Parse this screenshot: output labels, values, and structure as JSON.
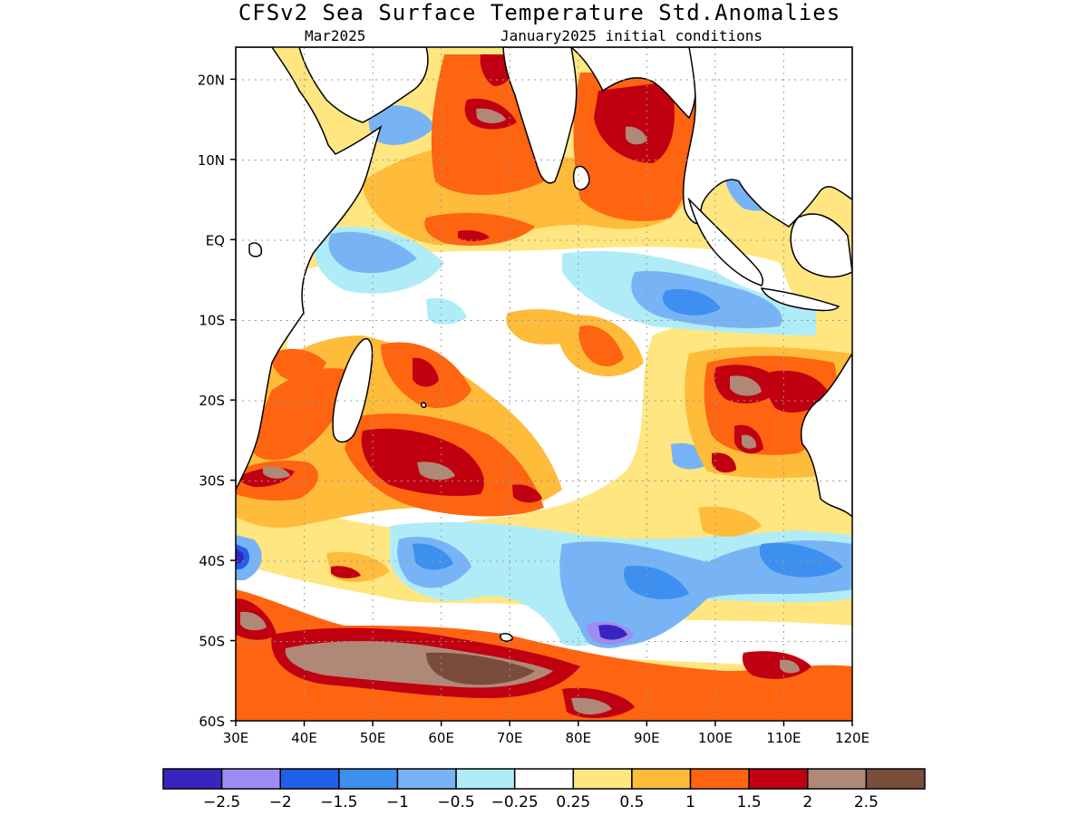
{
  "title": "CFSv2 Sea Surface Temperature Std.Anomalies",
  "subtitle_left": "Mar2025",
  "subtitle_right": "January2025 initial conditions",
  "map": {
    "lon_range": [
      30,
      120
    ],
    "lat_range": [
      -60,
      24
    ],
    "lat_ticks": [
      {
        "value": 20,
        "label": "20N"
      },
      {
        "value": 10,
        "label": "10N"
      },
      {
        "value": 0,
        "label": "EQ"
      },
      {
        "value": -10,
        "label": "10S"
      },
      {
        "value": -20,
        "label": "20S"
      },
      {
        "value": -30,
        "label": "30S"
      },
      {
        "value": -40,
        "label": "40S"
      },
      {
        "value": -50,
        "label": "50S"
      },
      {
        "value": -60,
        "label": "60S"
      }
    ],
    "lon_ticks": [
      {
        "value": 30,
        "label": "30E"
      },
      {
        "value": 40,
        "label": "40E"
      },
      {
        "value": 50,
        "label": "50E"
      },
      {
        "value": 60,
        "label": "60E"
      },
      {
        "value": 70,
        "label": "70E"
      },
      {
        "value": 80,
        "label": "80E"
      },
      {
        "value": 90,
        "label": "90E"
      },
      {
        "value": 100,
        "label": "100E"
      },
      {
        "value": 110,
        "label": "110E"
      },
      {
        "value": 120,
        "label": "120E"
      }
    ],
    "grid": true
  },
  "colorbar": {
    "colors": [
      "#3a24c0",
      "#9e8cf2",
      "#2060e8",
      "#3d90f0",
      "#78b4f5",
      "#b0ecf8",
      "#ffffff",
      "#ffe680",
      "#ffbb3a",
      "#ff6410",
      "#c00010",
      "#b08878",
      "#7a4c3c"
    ],
    "labels": [
      "-2.5",
      "-2",
      "-1.5",
      "-1",
      "-0.5",
      "-0.25",
      "0.25",
      "0.5",
      "1",
      "1.5",
      "2",
      "2.5"
    ]
  }
}
